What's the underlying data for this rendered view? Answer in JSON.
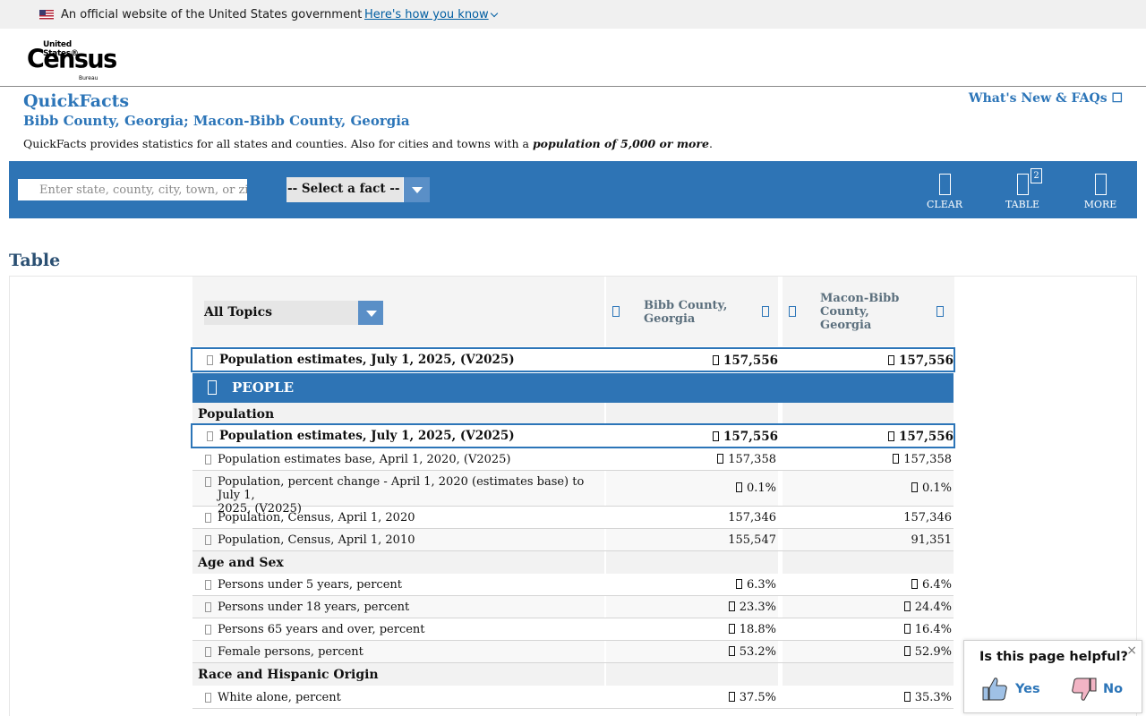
{
  "gov_banner": {
    "text": "An official website of the United States government",
    "link": "Here's how you know"
  },
  "logo": {
    "line1": "United States®",
    "line2": "Census",
    "line3": "Bureau"
  },
  "page": {
    "title": "QuickFacts",
    "subtitle": "Bibb County, Georgia; Macon-Bibb County, Georgia",
    "description": "QuickFacts provides statistics for all states and counties. Also for cities and towns with a ",
    "description_em": "population of 5,000 or more",
    "description_end": ".",
    "whats_new": "What's New & FAQs ☐"
  },
  "toolbar": {
    "search_placeholder": "Enter state, county, city, town, or zip code",
    "select_fact": "-- Select a fact --",
    "clear": "CLEAR",
    "table": "TABLE",
    "table_badge": "2",
    "more": "MORE"
  },
  "table": {
    "heading": "Table",
    "topics": "All Topics",
    "columns": [
      "Bibb County, Georgia",
      "Macon-Bibb County, Georgia"
    ],
    "col1_lines": [
      "Bibb County,",
      "Georgia"
    ],
    "col2_lines": [
      "Macon-Bibb",
      "County,",
      "Georgia"
    ],
    "headline_row": {
      "label": "Population estimates, July 1, 2025, (V2025)",
      "v1": "157,556",
      "v2": "157,556"
    },
    "section": "PEOPLE",
    "categories": [
      "Population",
      "Age and Sex",
      "Race and Hispanic Origin"
    ],
    "rows": [
      {
        "label": "Population estimates, July 1, 2025, (V2025)",
        "v1": "157,556",
        "v2": "157,556"
      },
      {
        "label": "Population estimates base, April 1, 2020, (V2025)",
        "v1": "157,358",
        "v2": "157,358"
      },
      {
        "label_l1": "Population, percent change - April 1, 2020 (estimates base) to July 1,",
        "label_l2": "2025, (V2025)",
        "v1": "0.1%",
        "v2": "0.1%"
      },
      {
        "label": "Population, Census, April 1, 2020",
        "v1": "157,346",
        "v2": "157,346"
      },
      {
        "label": "Population, Census, April 1, 2010",
        "v1": "155,547",
        "v2": "91,351"
      },
      {
        "label": "Persons under 5 years, percent",
        "v1": "6.3%",
        "v2": "6.4%"
      },
      {
        "label": "Persons under 18 years, percent",
        "v1": "23.3%",
        "v2": "24.4%"
      },
      {
        "label": "Persons 65 years and over, percent",
        "v1": "18.8%",
        "v2": "16.4%"
      },
      {
        "label": "Female persons, percent",
        "v1": "53.2%",
        "v2": "52.9%"
      },
      {
        "label": "White alone, percent",
        "v1": "37.5%",
        "v2": "35.3%"
      }
    ]
  },
  "helpful": {
    "question": "Is this page helpful?",
    "close": "×",
    "yes": "Yes",
    "no": "No"
  }
}
